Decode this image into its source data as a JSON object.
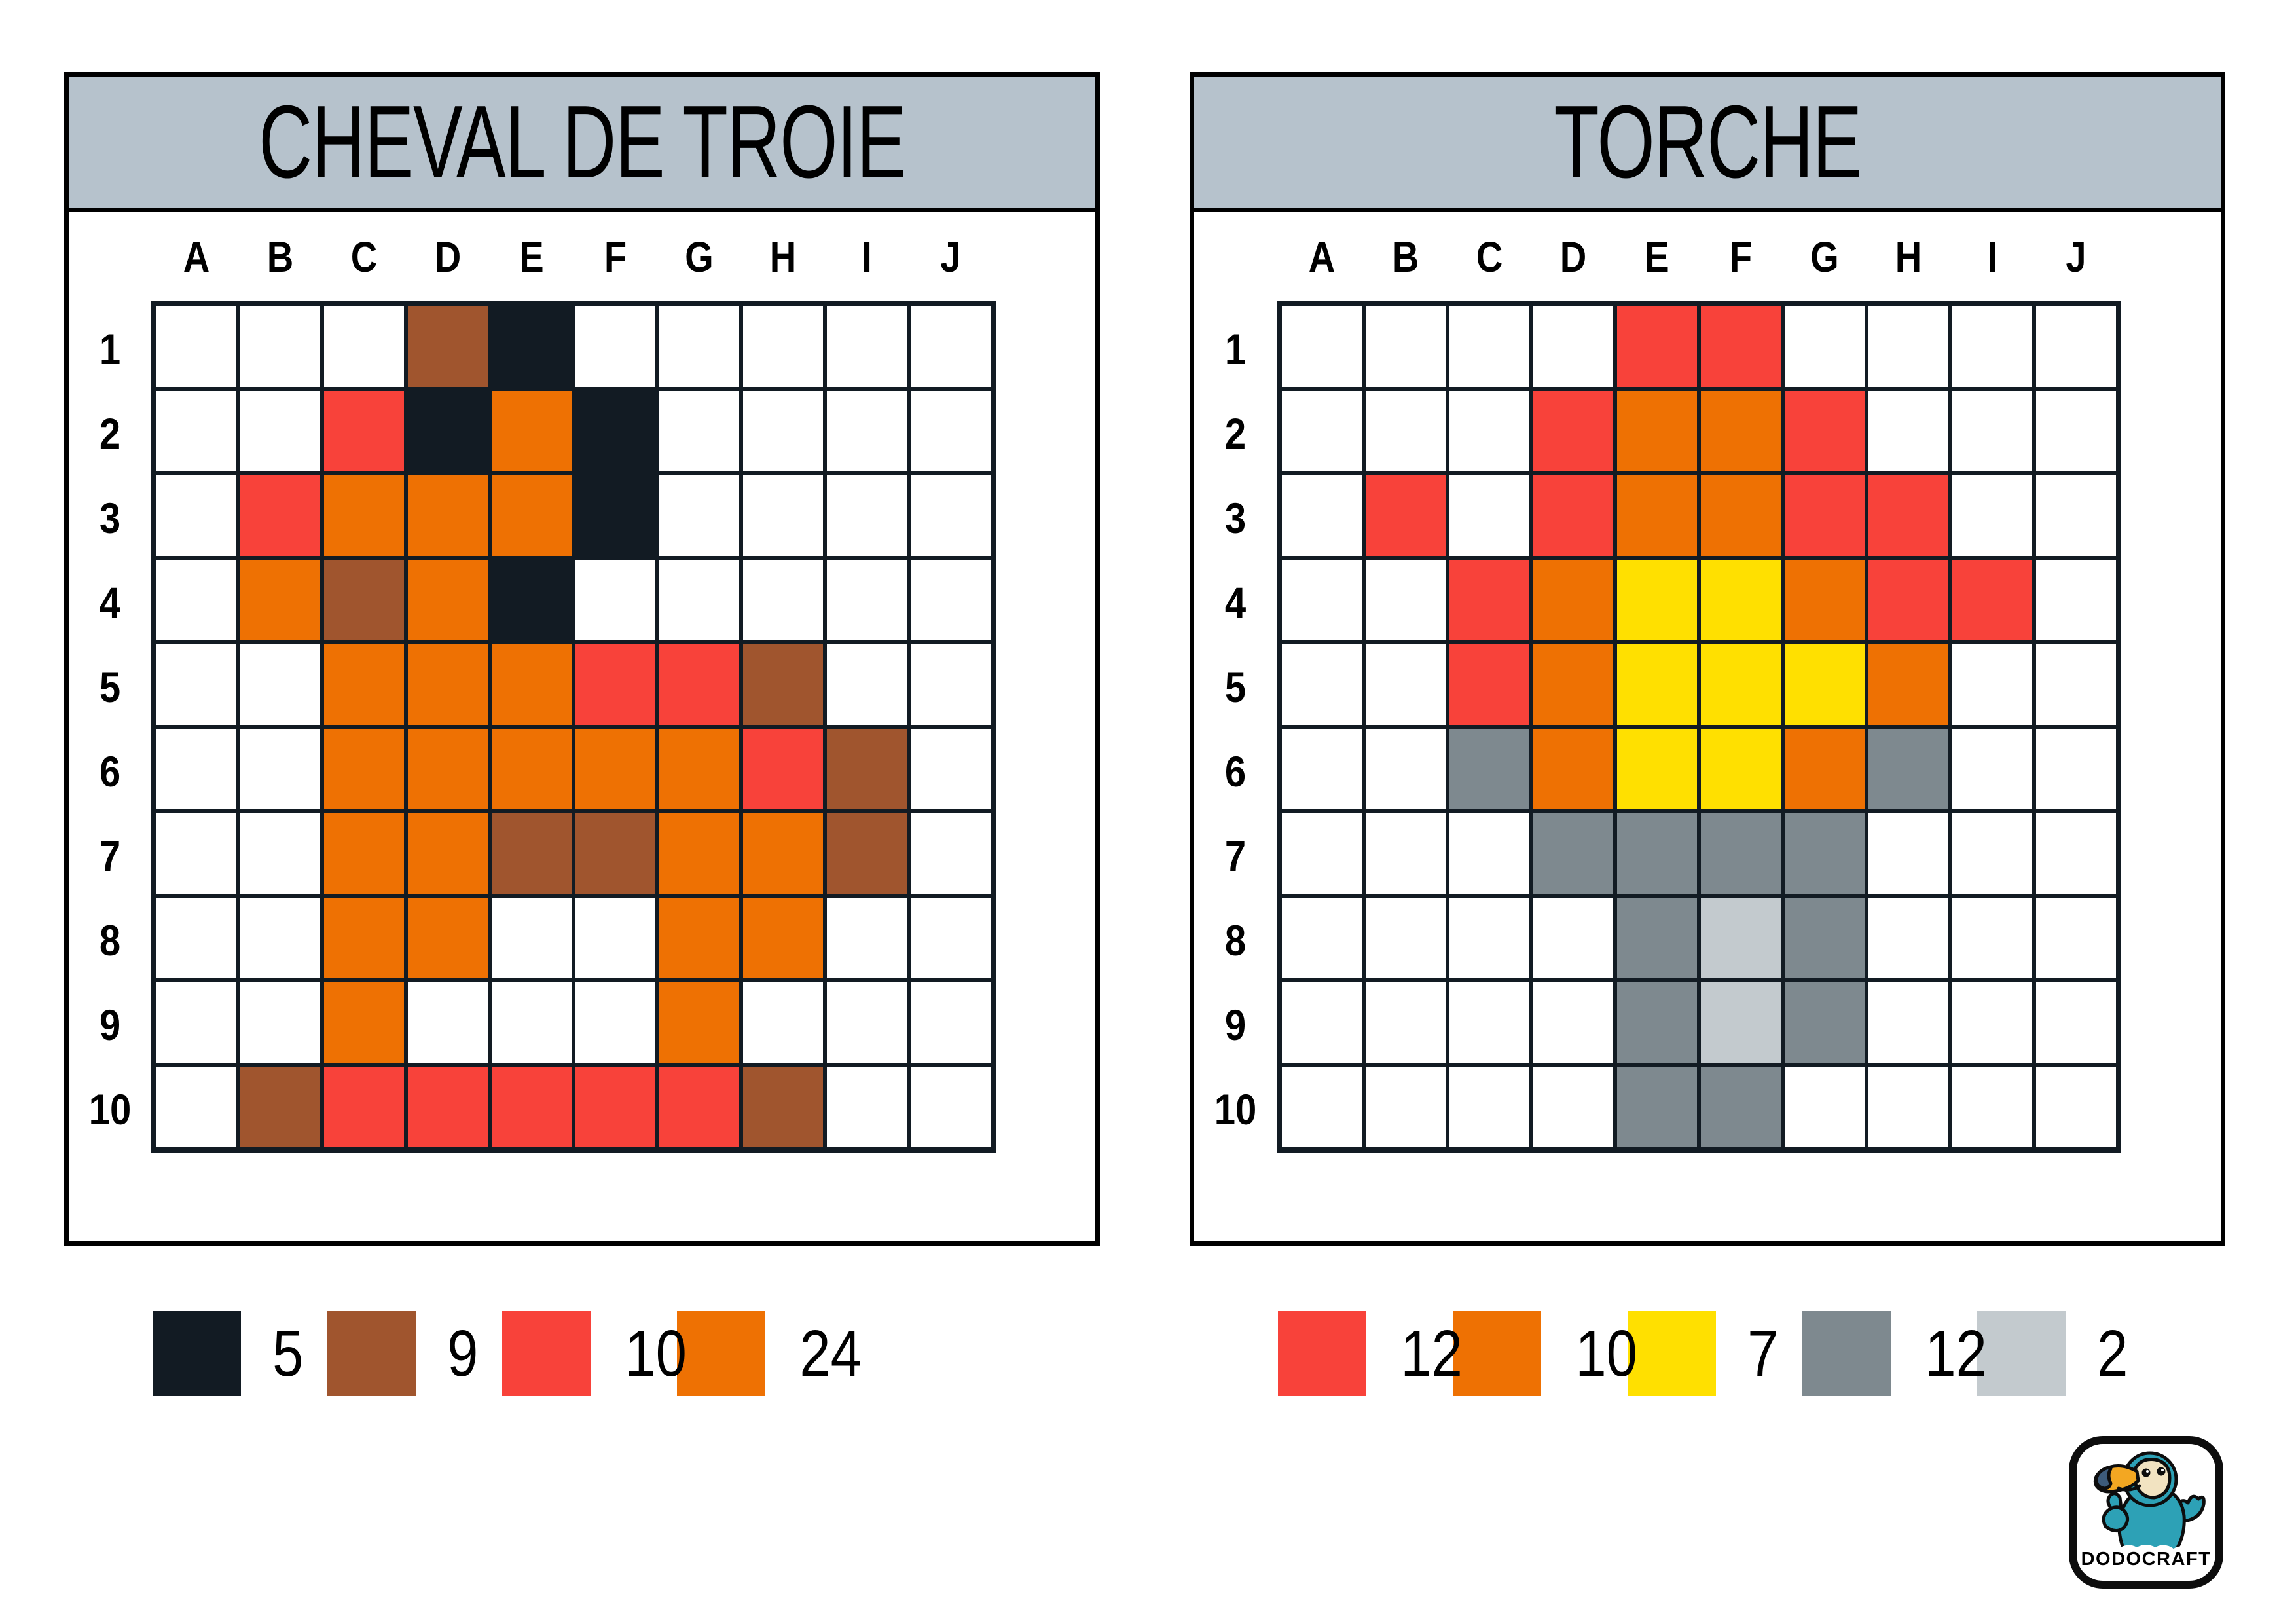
{
  "ui": {
    "header_bg": "#b6c2cc",
    "panel_border": "#000000",
    "grid_line": "#121b23",
    "page_bg": "#ffffff"
  },
  "colors": {
    "black": "#121b23",
    "brown": "#a0552e",
    "red": "#f8423a",
    "orange": "#ee7103",
    "yellow": "#ffe000",
    "gray": "#7e898f",
    "lightgray": "#c3cace"
  },
  "puzzles": [
    {
      "title": "CHEVAL DE TROIE",
      "columns": [
        "A",
        "B",
        "C",
        "D",
        "E",
        "F",
        "G",
        "H",
        "I",
        "J"
      ],
      "rows": [
        "1",
        "2",
        "3",
        "4",
        "5",
        "6",
        "7",
        "8",
        "9",
        "10"
      ],
      "cells": [
        [
          "",
          "",
          "",
          "brown",
          "black",
          "",
          "",
          "",
          "",
          ""
        ],
        [
          "",
          "",
          "red",
          "black",
          "orange",
          "black",
          "",
          "",
          "",
          ""
        ],
        [
          "",
          "red",
          "orange",
          "orange",
          "orange",
          "black",
          "",
          "",
          "",
          ""
        ],
        [
          "",
          "orange",
          "brown",
          "orange",
          "black",
          "",
          "",
          "",
          "",
          ""
        ],
        [
          "",
          "",
          "orange",
          "orange",
          "orange",
          "red",
          "red",
          "brown",
          "",
          ""
        ],
        [
          "",
          "",
          "orange",
          "orange",
          "orange",
          "orange",
          "orange",
          "red",
          "brown",
          ""
        ],
        [
          "",
          "",
          "orange",
          "orange",
          "brown",
          "brown",
          "orange",
          "orange",
          "brown",
          ""
        ],
        [
          "",
          "",
          "orange",
          "orange",
          "",
          "",
          "orange",
          "orange",
          "",
          ""
        ],
        [
          "",
          "",
          "orange",
          "",
          "",
          "",
          "orange",
          "",
          "",
          ""
        ],
        [
          "",
          "brown",
          "red",
          "red",
          "red",
          "red",
          "red",
          "brown",
          "",
          ""
        ]
      ],
      "legend": [
        {
          "color": "black",
          "count": "5"
        },
        {
          "color": "brown",
          "count": "9"
        },
        {
          "color": "red",
          "count": "10"
        },
        {
          "color": "orange",
          "count": "24"
        }
      ]
    },
    {
      "title": "TORCHE",
      "columns": [
        "A",
        "B",
        "C",
        "D",
        "E",
        "F",
        "G",
        "H",
        "I",
        "J"
      ],
      "rows": [
        "1",
        "2",
        "3",
        "4",
        "5",
        "6",
        "7",
        "8",
        "9",
        "10"
      ],
      "cells": [
        [
          "",
          "",
          "",
          "",
          "red",
          "red",
          "",
          "",
          "",
          ""
        ],
        [
          "",
          "",
          "",
          "red",
          "orange",
          "orange",
          "red",
          "",
          "",
          ""
        ],
        [
          "",
          "red",
          "",
          "red",
          "orange",
          "orange",
          "red",
          "red",
          "",
          ""
        ],
        [
          "",
          "",
          "red",
          "orange",
          "yellow",
          "yellow",
          "orange",
          "red",
          "red",
          ""
        ],
        [
          "",
          "",
          "red",
          "orange",
          "yellow",
          "yellow",
          "yellow",
          "orange",
          "",
          ""
        ],
        [
          "",
          "",
          "gray",
          "orange",
          "yellow",
          "yellow",
          "orange",
          "gray",
          "",
          ""
        ],
        [
          "",
          "",
          "",
          "gray",
          "gray",
          "gray",
          "gray",
          "",
          "",
          ""
        ],
        [
          "",
          "",
          "",
          "",
          "gray",
          "lightgray",
          "gray",
          "",
          "",
          ""
        ],
        [
          "",
          "",
          "",
          "",
          "gray",
          "lightgray",
          "gray",
          "",
          "",
          ""
        ],
        [
          "",
          "",
          "",
          "",
          "gray",
          "gray",
          "",
          "",
          "",
          ""
        ]
      ],
      "legend": [
        {
          "color": "red",
          "count": "12"
        },
        {
          "color": "orange",
          "count": "10"
        },
        {
          "color": "yellow",
          "count": "7"
        },
        {
          "color": "gray",
          "count": "12"
        },
        {
          "color": "lightgray",
          "count": "2"
        }
      ]
    }
  ],
  "logo": {
    "text": "DODOCRAFT",
    "mascot": "dodo-bird-thumbs-up",
    "mascot_colors": {
      "body": "#2da1b6",
      "body_dark": "#1f8296",
      "face": "#f2e3c1",
      "beak": "#f3a722",
      "beak_tip": "#3d5b7a",
      "outline": "#0d0d0d"
    }
  }
}
